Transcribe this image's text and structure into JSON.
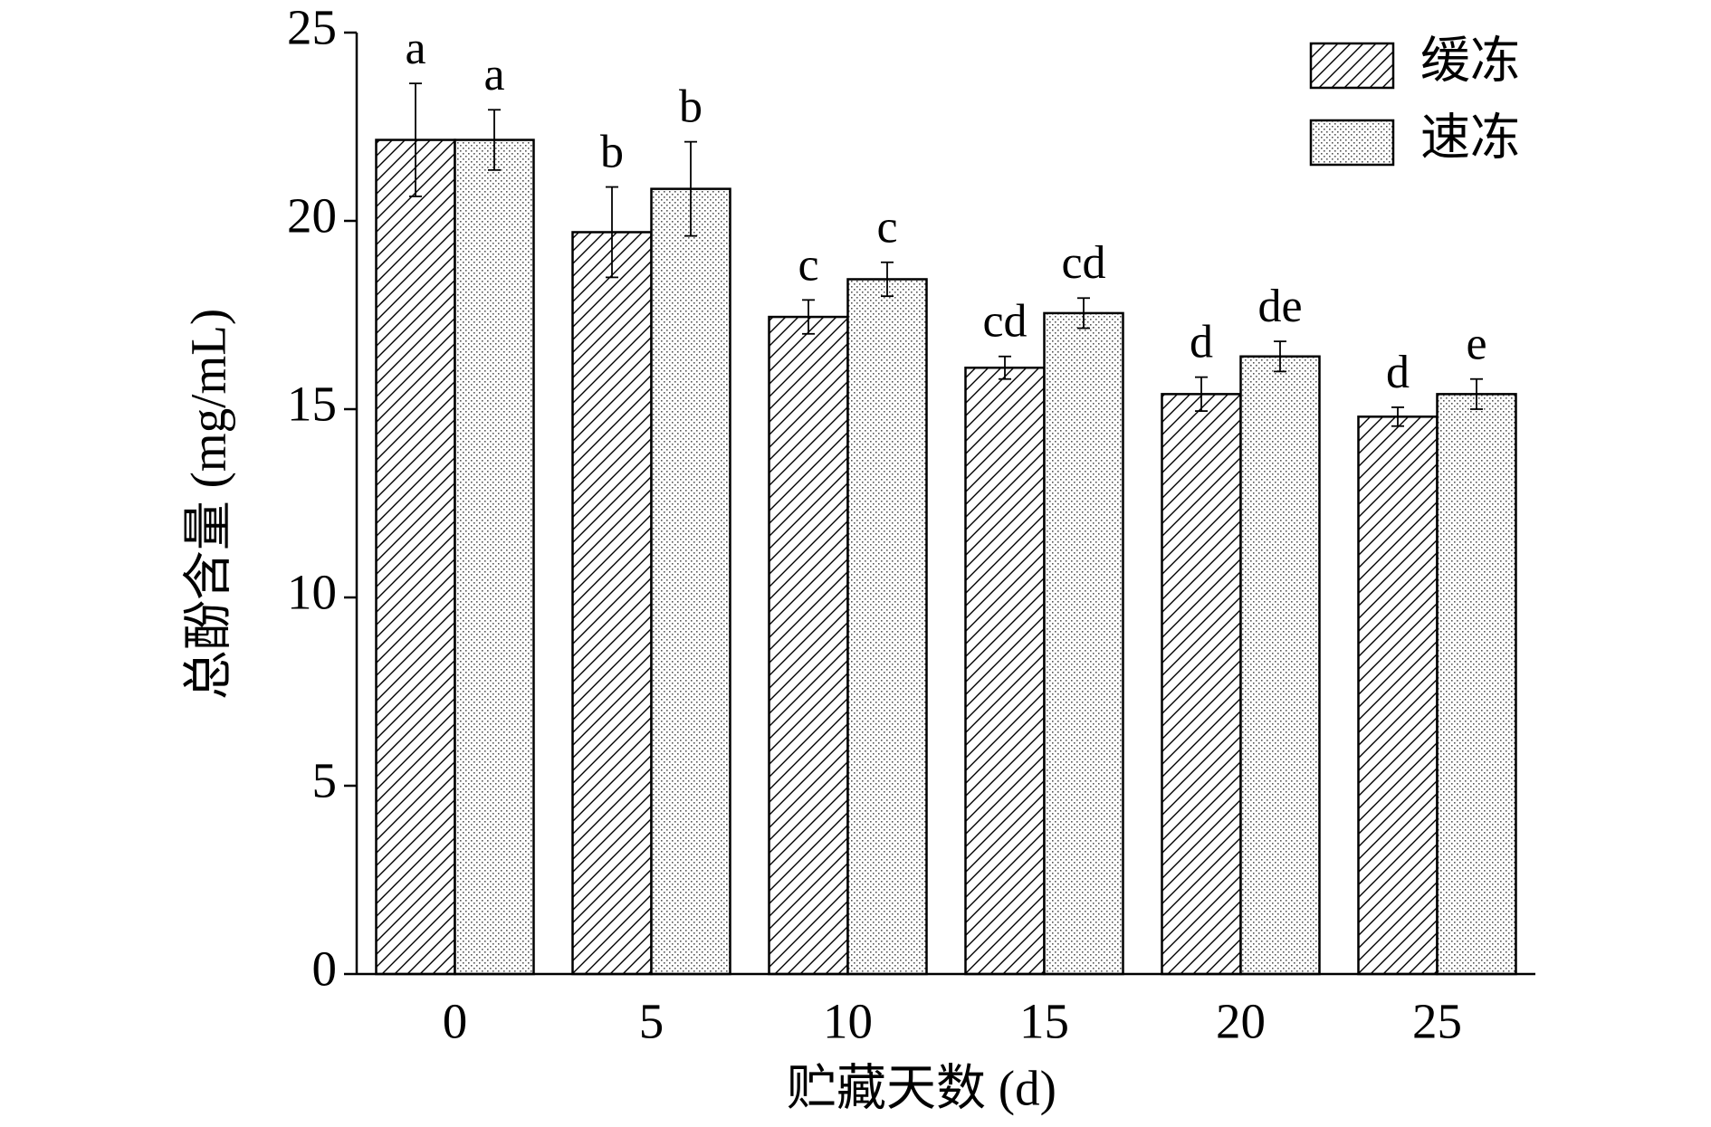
{
  "chart_data": {
    "type": "bar",
    "x_label": "贮藏天数 (d)",
    "y_label": "总酚含量 (mg/mL)",
    "categories": [
      "0",
      "5",
      "10",
      "15",
      "20",
      "25"
    ],
    "series": [
      {
        "name": "缓冻",
        "color": "#000000",
        "pattern": "hatch",
        "values": [
          22.15,
          19.7,
          17.45,
          16.1,
          15.4,
          14.8
        ],
        "errors": [
          1.5,
          1.2,
          0.45,
          0.3,
          0.45,
          0.25
        ],
        "annotations": [
          "a",
          "b",
          "c",
          "cd",
          "d",
          "d"
        ]
      },
      {
        "name": "速冻",
        "color": "#000000",
        "pattern": "dots",
        "values": [
          22.15,
          20.85,
          18.45,
          17.55,
          16.4,
          15.4
        ],
        "errors": [
          0.8,
          1.25,
          0.45,
          0.4,
          0.4,
          0.4
        ],
        "annotations": [
          "a",
          "b",
          "c",
          "cd",
          "de",
          "e"
        ]
      }
    ],
    "ylim": [
      0,
      25
    ],
    "yticks": [
      0,
      5,
      10,
      15,
      20,
      25
    ],
    "legend": "upper-right",
    "grid": false
  }
}
